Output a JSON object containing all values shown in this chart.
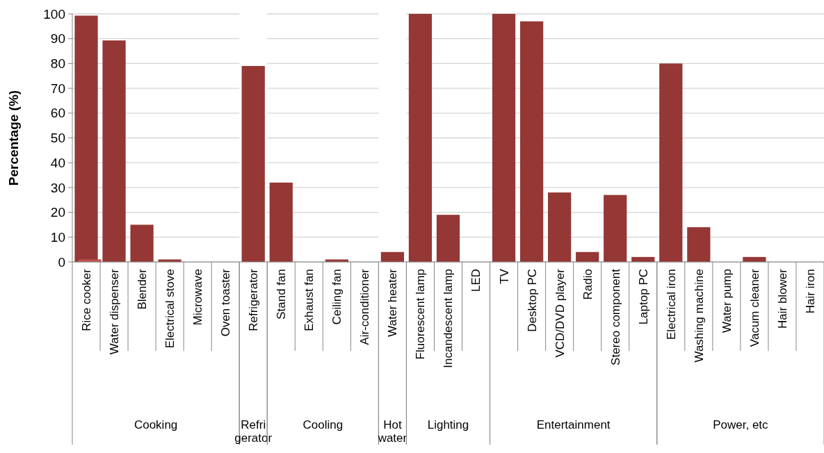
{
  "chart_data": [
    {
      "type": "bar",
      "ylabel": "Percentage  (%)",
      "xlabel": "Cooking",
      "categories": [
        "Rice cooker",
        "Water dispenser",
        "Blender",
        "Electrical stove",
        "Microwave",
        "Oven toaster"
      ],
      "series": [
        {
          "color": "#953735",
          "values": [
            99.3,
            89.3,
            15,
            1,
            0,
            0
          ]
        },
        {
          "color": "#c0504d",
          "values": [
            1,
            null,
            null,
            null,
            null,
            null
          ]
        }
      ],
      "ylim": [
        0,
        100
      ],
      "yticks": [
        0,
        10,
        20,
        30,
        40,
        50,
        60,
        70,
        80,
        90,
        100
      ],
      "grid": "y"
    },
    {
      "type": "bar",
      "xlabel": "Refri gerator",
      "categories": [
        "Refrigerator"
      ],
      "values": [
        79
      ],
      "color": "#953735",
      "ylim": [
        0,
        100
      ],
      "yticks": [
        0,
        10,
        20,
        30,
        40,
        50,
        60,
        70,
        80,
        90,
        100
      ],
      "tick_labels": "x"
    },
    {
      "type": "bar",
      "xlabel": "Cooling",
      "categories": [
        "Stand fan",
        "Exhaust fan",
        "Ceiling fan",
        "Air-conditioner"
      ],
      "values": [
        32,
        0,
        1,
        0
      ],
      "color": "#953735",
      "ylim": [
        0,
        100
      ],
      "yticks": [
        0,
        10,
        20,
        30,
        40,
        50,
        60,
        70,
        80,
        90,
        100
      ],
      "grid": "y",
      "tick_labels": "x"
    },
    {
      "type": "bar",
      "xlabel": "Hot water",
      "categories": [
        "Water heater"
      ],
      "values": [
        4
      ],
      "color": "#953735",
      "ylim": [
        0,
        100
      ],
      "yticks": [
        0,
        10,
        20,
        30,
        40,
        50,
        60,
        70,
        80,
        90,
        100
      ],
      "tick_labels": "x"
    },
    {
      "type": "bar",
      "xlabel": "Lighting",
      "categories": [
        "Fluorescent lamp",
        "Incandescent lamp",
        "LED"
      ],
      "values": [
        100,
        19,
        0
      ],
      "color": "#953735",
      "ylim": [
        0,
        100
      ],
      "yticks": [
        0,
        10,
        20,
        30,
        40,
        50,
        60,
        70,
        80,
        90,
        100
      ],
      "grid": "y",
      "tick_labels": "x"
    },
    {
      "type": "bar",
      "xlabel": "Entertainment",
      "categories": [
        "TV",
        "Desktop PC",
        "VCD/DVD player",
        "Radio",
        "Stereo component",
        "Laptop PC"
      ],
      "values": [
        100,
        97,
        28,
        4,
        27,
        2
      ],
      "color": "#953735",
      "ylim": [
        0,
        100
      ],
      "yticks": [
        0,
        10,
        20,
        30,
        40,
        50,
        60,
        70,
        80,
        90,
        100
      ],
      "grid": "y",
      "tick_labels": "x"
    },
    {
      "type": "bar",
      "xlabel": "Power, etc",
      "categories": [
        "Electrical iron",
        "Washing machine",
        "Water pump",
        "Vacum cleaner",
        "Hair blower",
        "Hair iron"
      ],
      "values": [
        80,
        14,
        0,
        2,
        0,
        0
      ],
      "color": "#953735",
      "ylim": [
        0,
        100
      ],
      "yticks": [
        0,
        10,
        20,
        30,
        40,
        50,
        60,
        70,
        80,
        90,
        100
      ],
      "grid": "y",
      "tick_labels": "x"
    }
  ]
}
